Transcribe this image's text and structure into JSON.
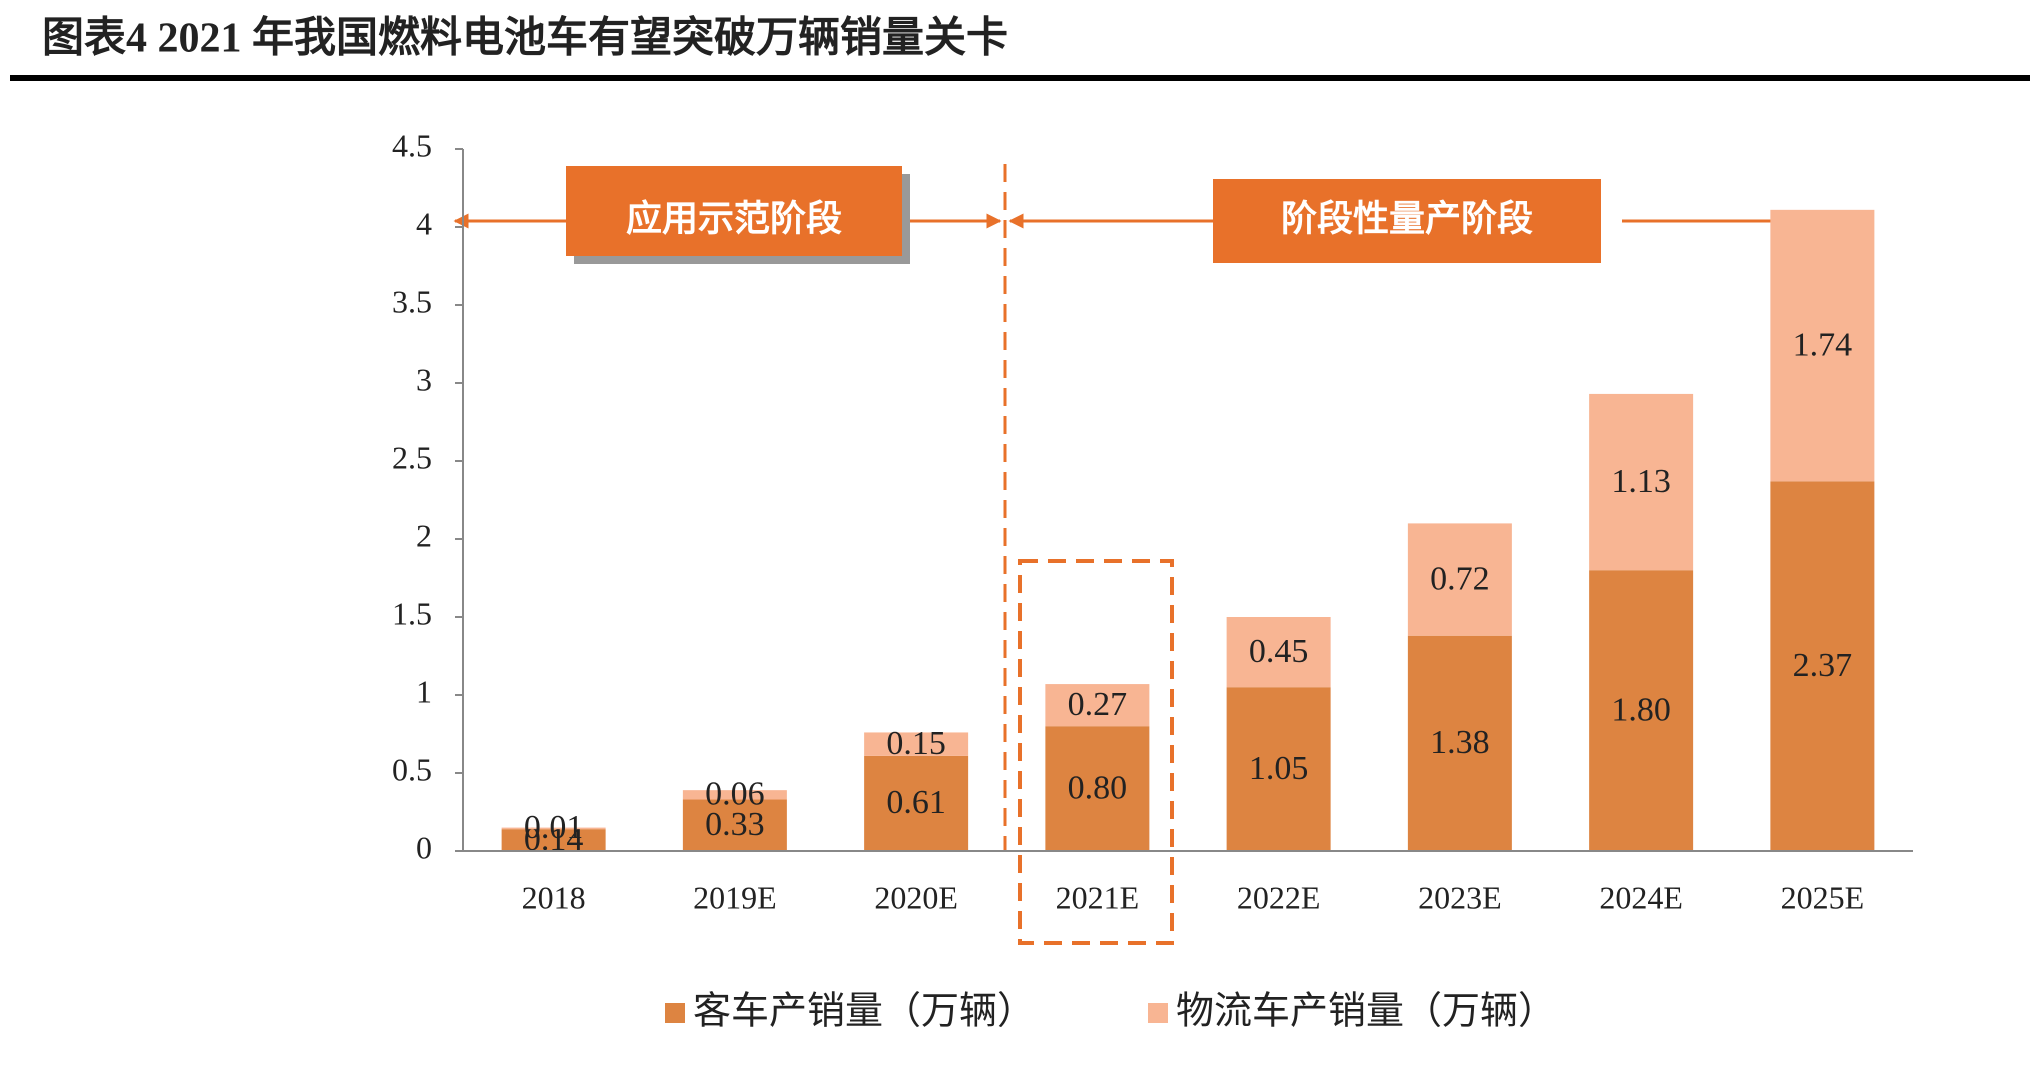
{
  "chart_data": {
    "type": "bar",
    "stacked": true,
    "title": "图表4 2021 年我国燃料电池车有望突破万辆销量关卡",
    "annotations": [
      "应用示范阶段",
      "阶段性量产阶段"
    ],
    "categories": [
      "2018",
      "2019E",
      "2020E",
      "2021E",
      "2022E",
      "2023E",
      "2024E",
      "2025E"
    ],
    "series": [
      {
        "name": "客车产销量（万辆）",
        "color": "#dd8441",
        "values": [
          0.14,
          0.33,
          0.61,
          0.8,
          1.05,
          1.38,
          1.8,
          2.37
        ],
        "value_labels": [
          "0.14",
          "0.33",
          "0.61",
          "0.80",
          "1.05",
          "1.38",
          "1.80",
          "2.37"
        ]
      },
      {
        "name": "物流车产销量（万辆）",
        "color": "#f8b593",
        "values": [
          0.01,
          0.06,
          0.15,
          0.27,
          0.45,
          0.72,
          1.13,
          1.74
        ],
        "value_labels": [
          "0.01",
          "0.06",
          "0.15",
          "0.27",
          "0.45",
          "0.72",
          "1.13",
          "1.74"
        ]
      }
    ],
    "ylim": [
      0,
      4.5
    ],
    "yticks": [
      0,
      0.5,
      1,
      1.5,
      2,
      2.5,
      3,
      3.5,
      4,
      4.5
    ],
    "grid": false
  }
}
